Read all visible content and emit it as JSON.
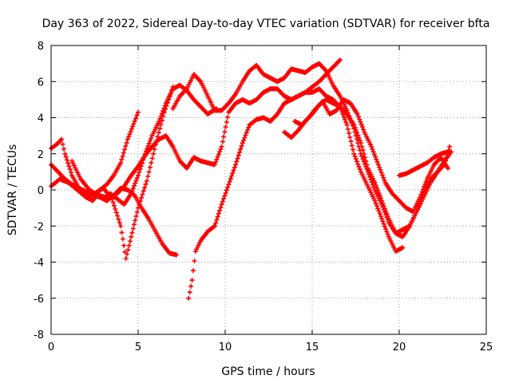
{
  "chart_data": {
    "type": "scatter",
    "title": "Day 363 of 2022, Sidereal Day-to-day VTEC variation (SDTVAR) for receiver bfta",
    "xlabel": "GPS time / hours",
    "ylabel": "SDTVAR / TECUs",
    "xlim": [
      0,
      25
    ],
    "ylim": [
      -8,
      8
    ],
    "xticks": [
      0,
      5,
      10,
      15,
      20,
      25
    ],
    "yticks": [
      -8,
      -6,
      -4,
      -2,
      0,
      2,
      4,
      6,
      8
    ],
    "grid": true,
    "marker": "plus",
    "color": "#ff0000",
    "series": [
      {
        "x": [
          0.0,
          0.4,
          0.8,
          1.2,
          1.6,
          2.0,
          2.4,
          2.8,
          3.2,
          3.6,
          4.0,
          4.4,
          4.8,
          5.2,
          5.6,
          6.0,
          6.4,
          6.8,
          7.2
        ],
        "y": [
          1.4,
          1.0,
          0.6,
          0.3,
          0.1,
          -0.1,
          -0.3,
          -0.4,
          -0.6,
          -0.3,
          0.1,
          0.0,
          -0.3,
          -1.0,
          -1.6,
          -2.3,
          -3.0,
          -3.5,
          -3.6
        ]
      },
      {
        "x": [
          0.0,
          0.5,
          1.0,
          1.5,
          2.0,
          2.5,
          3.0,
          3.5,
          4.0,
          4.3,
          4.6,
          5.0,
          5.5,
          6.0,
          6.5,
          7.0
        ],
        "y": [
          0.2,
          0.6,
          0.4,
          0.0,
          -0.4,
          -0.2,
          0.1,
          -0.5,
          -2.0,
          -3.8,
          -2.6,
          -1.0,
          0.5,
          2.5,
          4.3,
          5.7
        ]
      },
      {
        "x": [
          0.0,
          0.3,
          0.6,
          0.8,
          1.2,
          1.6,
          2.0,
          2.4,
          2.8,
          3.2,
          3.6,
          4.0,
          4.4,
          4.8,
          5.0
        ],
        "y": [
          2.3,
          2.5,
          2.8,
          2.0,
          0.8,
          0.1,
          -0.4,
          -0.6,
          0.0,
          0.3,
          0.8,
          1.5,
          2.8,
          3.8,
          4.3
        ]
      },
      {
        "x": [
          1.2,
          1.7,
          2.2,
          2.7,
          3.1,
          3.4,
          3.8,
          4.2,
          4.6,
          5.0,
          5.4,
          5.8,
          6.2,
          6.6,
          7.0,
          7.4,
          7.8,
          8.2,
          8.6,
          9.0,
          9.5
        ],
        "y": [
          1.6,
          0.6,
          0.0,
          -0.3,
          -0.4,
          -0.2,
          -0.5,
          -0.8,
          -0.2,
          0.8,
          2.0,
          3.0,
          3.8,
          4.8,
          5.6,
          5.8,
          5.5,
          5.0,
          4.6,
          4.2,
          4.5
        ]
      },
      {
        "x": [
          3.8,
          4.2,
          4.6,
          5.0,
          5.4,
          5.8,
          6.2,
          6.6,
          7.0,
          7.4,
          7.8,
          8.2,
          8.6,
          9.0,
          9.4,
          9.8,
          10.2,
          10.6,
          11.0,
          11.4,
          11.8,
          12.2,
          12.6,
          13.0,
          13.4,
          13.8,
          14.2,
          14.6,
          15.0,
          15.4,
          15.8,
          16.2,
          16.6
        ],
        "y": [
          -0.2,
          0.2,
          0.8,
          1.3,
          1.9,
          2.4,
          2.8,
          3.0,
          2.4,
          1.6,
          1.2,
          1.8,
          1.6,
          1.5,
          1.4,
          2.4,
          4.3,
          4.8,
          5.0,
          4.8,
          5.0,
          5.4,
          5.6,
          5.6,
          5.2,
          5.0,
          5.2,
          5.4,
          5.7,
          6.0,
          6.4,
          6.8,
          7.2
        ]
      },
      {
        "x": [
          7.9,
          8.1,
          8.3,
          8.6,
          9.0,
          9.4,
          9.8,
          10.2,
          10.6,
          11.0,
          11.4,
          11.8,
          12.2,
          12.6,
          13.0,
          13.4,
          13.8,
          14.2,
          14.6,
          15.0,
          15.4,
          15.8,
          16.2,
          16.6,
          17.0,
          17.4,
          17.8,
          18.2,
          18.6,
          19.0,
          19.4,
          19.8,
          20.2
        ],
        "y": [
          -6.0,
          -5.0,
          -3.4,
          -2.8,
          -2.3,
          -2.0,
          -0.8,
          0.3,
          1.4,
          2.6,
          3.6,
          3.9,
          4.0,
          3.8,
          4.2,
          4.8,
          5.0,
          5.2,
          5.4,
          5.4,
          5.6,
          5.2,
          5.0,
          4.6,
          3.6,
          2.0,
          1.0,
          0.2,
          -0.6,
          -1.6,
          -2.6,
          -3.4,
          -3.2
        ]
      },
      {
        "x": [
          7.0,
          7.4,
          7.8,
          8.2,
          8.6,
          9.0,
          9.4,
          9.8,
          10.2,
          10.6,
          11.0,
          11.4,
          11.8,
          12.2,
          12.6,
          13.0,
          13.4,
          13.8,
          14.2,
          14.6,
          15.0,
          15.4,
          15.8,
          16.2,
          16.6,
          17.0,
          17.4,
          17.8,
          18.2,
          18.6,
          19.0,
          19.4,
          19.8,
          20.2,
          20.6,
          21.0,
          21.4,
          21.8,
          22.2,
          22.6,
          22.9
        ],
        "y": [
          4.5,
          5.2,
          5.6,
          6.4,
          6.0,
          5.2,
          4.4,
          4.4,
          4.8,
          5.3,
          6.0,
          6.6,
          6.9,
          6.4,
          6.2,
          6.0,
          6.2,
          6.7,
          6.6,
          6.5,
          6.8,
          7.0,
          6.6,
          5.8,
          5.2,
          4.4,
          3.4,
          2.0,
          1.0,
          0.0,
          -0.8,
          -1.8,
          -2.4,
          -2.2,
          -2.0,
          -1.2,
          -0.4,
          0.4,
          1.0,
          1.6,
          2.0
        ]
      },
      {
        "x": [
          13.4,
          13.8,
          14.2,
          14.6,
          15.0,
          15.4,
          15.8,
          16.2,
          16.6,
          17.0,
          17.4,
          17.8,
          18.2,
          18.6,
          19.0,
          19.4,
          19.8,
          20.2,
          20.6,
          21.0,
          21.4,
          21.8,
          22.2,
          22.6,
          22.9
        ],
        "y": [
          3.2,
          2.9,
          3.3,
          3.8,
          4.2,
          4.7,
          5.0,
          4.8,
          4.6,
          4.2,
          3.6,
          2.6,
          1.2,
          0.4,
          -0.6,
          -1.6,
          -2.4,
          -2.6,
          -2.0,
          -1.2,
          -0.2,
          0.6,
          1.0,
          1.4,
          2.4
        ]
      },
      {
        "x": [
          14.0,
          14.4,
          14.8,
          15.2,
          15.6,
          16.0,
          16.4,
          16.8,
          17.2,
          17.6,
          18.0,
          18.4,
          18.8,
          19.2,
          19.6,
          20.0,
          20.4,
          20.8,
          21.2,
          21.6,
          22.0,
          22.4,
          22.8
        ],
        "y": [
          3.8,
          3.6,
          4.0,
          4.5,
          4.9,
          4.2,
          4.4,
          5.0,
          4.8,
          4.2,
          3.2,
          2.4,
          1.4,
          0.4,
          -0.2,
          -0.6,
          -1.0,
          -1.2,
          -0.4,
          0.6,
          1.4,
          1.8,
          1.2
        ]
      },
      {
        "x": [
          20.0,
          20.4,
          20.8,
          21.2,
          21.6,
          22.0,
          22.4,
          22.8,
          23.0
        ],
        "y": [
          0.8,
          0.9,
          1.1,
          1.3,
          1.5,
          1.8,
          2.0,
          2.1,
          2.1
        ]
      }
    ]
  }
}
